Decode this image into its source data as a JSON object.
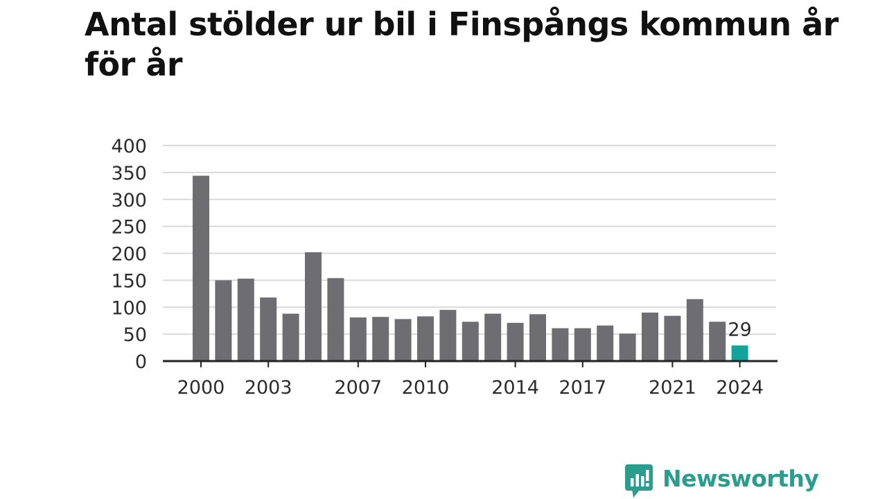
{
  "title": "Antal stölder ur bil i Finspångs kommun år för år",
  "brand": {
    "name": "Newsworthy",
    "color": "#2a9d8f"
  },
  "colors": {
    "bar": "#6e6d72",
    "highlight": "#12a49a",
    "grid": "#d9d9d9",
    "axis": "#222222"
  },
  "chart_data": {
    "type": "bar",
    "x": [
      2000,
      2001,
      2002,
      2003,
      2004,
      2005,
      2006,
      2007,
      2008,
      2009,
      2010,
      2011,
      2012,
      2013,
      2014,
      2015,
      2016,
      2017,
      2018,
      2019,
      2020,
      2021,
      2022,
      2023,
      2024
    ],
    "values": [
      344,
      150,
      153,
      118,
      88,
      202,
      154,
      81,
      82,
      78,
      83,
      95,
      73,
      88,
      71,
      87,
      61,
      61,
      66,
      51,
      90,
      84,
      115,
      73,
      29
    ],
    "x_tick_labels": [
      "2000",
      "2003",
      "2007",
      "2010",
      "2014",
      "2017",
      "2021",
      "2024"
    ],
    "y_ticks": [
      0,
      50,
      100,
      150,
      200,
      250,
      300,
      350,
      400
    ],
    "ylim": [
      0,
      400
    ],
    "grid": true,
    "highlight_index": 24,
    "data_labels": [
      {
        "index": 24,
        "text": "29"
      }
    ],
    "xlabel": "",
    "ylabel": ""
  }
}
